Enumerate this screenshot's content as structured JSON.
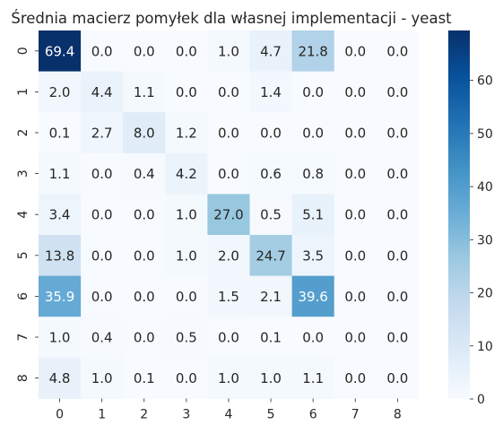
{
  "chart_data": {
    "type": "heatmap",
    "title": "Średnia macierz pomyłek dla własnej implementacji - yeast",
    "x_tick_labels": [
      "0",
      "1",
      "2",
      "3",
      "4",
      "5",
      "6",
      "7",
      "8"
    ],
    "y_tick_labels": [
      "0",
      "1",
      "2",
      "3",
      "4",
      "5",
      "6",
      "7",
      "8"
    ],
    "values": [
      [
        69.4,
        0.0,
        0.0,
        0.0,
        1.0,
        4.7,
        21.8,
        0.0,
        0.0
      ],
      [
        2.0,
        4.4,
        1.1,
        0.0,
        0.0,
        1.4,
        0.0,
        0.0,
        0.0
      ],
      [
        0.1,
        2.7,
        8.0,
        1.2,
        0.0,
        0.0,
        0.0,
        0.0,
        0.0
      ],
      [
        1.1,
        0.0,
        0.4,
        4.2,
        0.0,
        0.6,
        0.8,
        0.0,
        0.0
      ],
      [
        3.4,
        0.0,
        0.0,
        1.0,
        27.0,
        0.5,
        5.1,
        0.0,
        0.0
      ],
      [
        13.8,
        0.0,
        0.0,
        1.0,
        2.0,
        24.7,
        3.5,
        0.0,
        0.0
      ],
      [
        35.9,
        0.0,
        0.0,
        0.0,
        1.5,
        2.1,
        39.6,
        0.0,
        0.0
      ],
      [
        1.0,
        0.4,
        0.0,
        0.5,
        0.0,
        0.1,
        0.0,
        0.0,
        0.0
      ],
      [
        4.8,
        1.0,
        0.1,
        0.0,
        1.0,
        1.0,
        1.1,
        0.0,
        0.0
      ]
    ],
    "colorbar": {
      "min": 0,
      "max": 69.4,
      "ticks": [
        0,
        10,
        20,
        30,
        40,
        50,
        60
      ],
      "colormap": "Blues"
    },
    "grid": false
  }
}
